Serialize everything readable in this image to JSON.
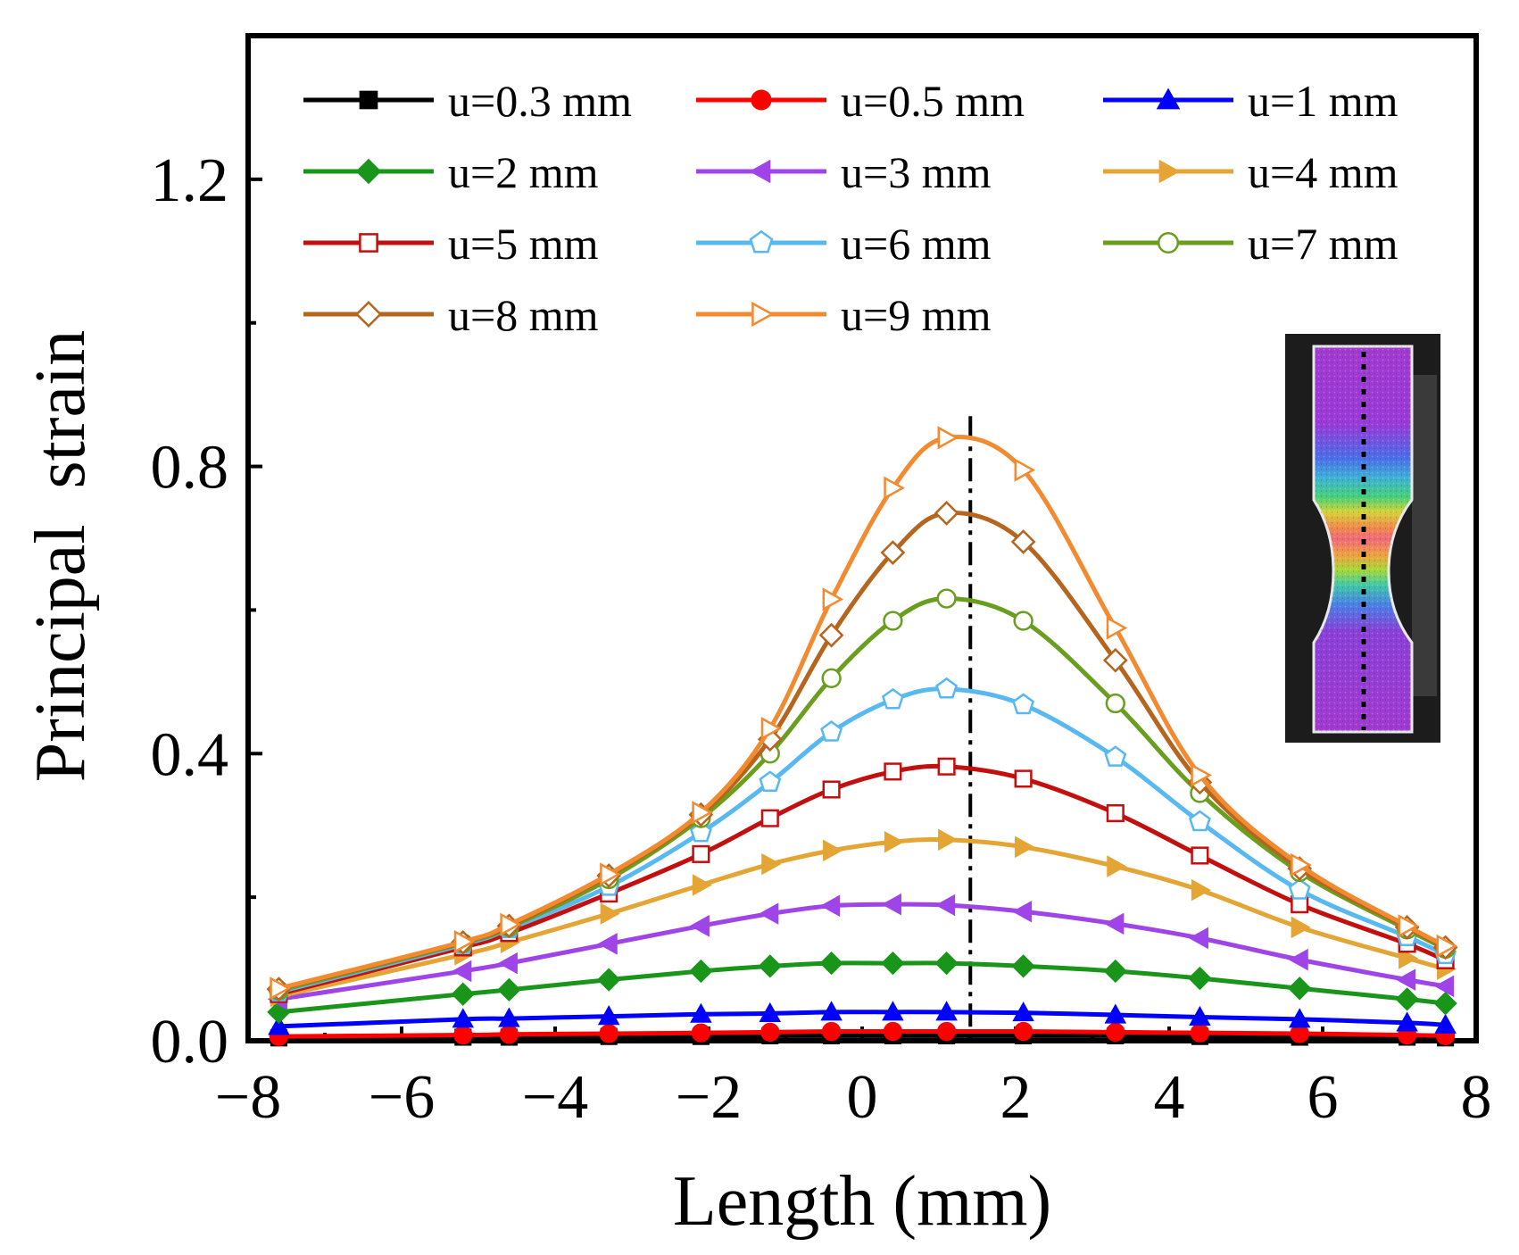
{
  "chart_data": {
    "type": "line",
    "xlabel": "Length (mm)",
    "ylabel": "Principal  strain",
    "xlim": [
      -8,
      8
    ],
    "ylim": [
      0,
      1.4
    ],
    "xticks": [
      -8,
      -6,
      -4,
      -2,
      0,
      2,
      4,
      6,
      8
    ],
    "xtick_labels": [
      "−8",
      "−6",
      "−4",
      "−2",
      "0",
      "2",
      "4",
      "6",
      "8"
    ],
    "yticks": [
      0,
      0.4,
      0.8,
      1.2
    ],
    "ytick_labels": [
      "0.0",
      "0.4",
      "0.8",
      "1.2"
    ],
    "reference_line_x": 1.41,
    "legend_position": "top",
    "x": [
      -7.6,
      -5.2,
      -4.6,
      -3.3,
      -2.1,
      -1.2,
      -0.4,
      0.4,
      1.1,
      2.1,
      3.3,
      4.4,
      5.7,
      7.1,
      7.6
    ],
    "series": [
      {
        "name": "u=0.3 mm",
        "color": "#000000",
        "marker": "square-filled",
        "values": [
          0.004,
          0.005,
          0.005,
          0.006,
          0.006,
          0.007,
          0.007,
          0.007,
          0.007,
          0.007,
          0.007,
          0.006,
          0.005,
          0.005,
          0.004
        ]
      },
      {
        "name": "u=0.5 mm",
        "color": "#ff0000",
        "marker": "circle-filled",
        "values": [
          0.006,
          0.008,
          0.009,
          0.01,
          0.011,
          0.012,
          0.013,
          0.013,
          0.013,
          0.013,
          0.012,
          0.011,
          0.01,
          0.008,
          0.007
        ]
      },
      {
        "name": "u=1 mm",
        "color": "#0000ff",
        "marker": "triangle-up-filled",
        "values": [
          0.02,
          0.03,
          0.031,
          0.034,
          0.037,
          0.038,
          0.04,
          0.04,
          0.04,
          0.039,
          0.036,
          0.033,
          0.03,
          0.025,
          0.022
        ]
      },
      {
        "name": "u=2 mm",
        "color": "#199519",
        "marker": "diamond-filled",
        "values": [
          0.04,
          0.065,
          0.071,
          0.085,
          0.097,
          0.104,
          0.108,
          0.108,
          0.108,
          0.104,
          0.097,
          0.087,
          0.073,
          0.058,
          0.052
        ]
      },
      {
        "name": "u=3 mm",
        "color": "#9f45e8",
        "marker": "triangle-left-filled",
        "values": [
          0.058,
          0.097,
          0.108,
          0.135,
          0.16,
          0.177,
          0.188,
          0.19,
          0.189,
          0.18,
          0.163,
          0.143,
          0.113,
          0.085,
          0.076
        ]
      },
      {
        "name": "u=4 mm",
        "color": "#e5a534",
        "marker": "triangle-right-filled",
        "values": [
          0.062,
          0.12,
          0.137,
          0.177,
          0.217,
          0.246,
          0.265,
          0.277,
          0.28,
          0.27,
          0.243,
          0.21,
          0.158,
          0.115,
          0.1
        ]
      },
      {
        "name": "u=5 mm",
        "color": "#c40f0f",
        "marker": "square-open",
        "values": [
          0.065,
          0.13,
          0.15,
          0.205,
          0.26,
          0.31,
          0.35,
          0.375,
          0.382,
          0.365,
          0.317,
          0.258,
          0.19,
          0.135,
          0.112
        ]
      },
      {
        "name": "u=6 mm",
        "color": "#58b8f2",
        "marker": "pentagon-open",
        "values": [
          0.068,
          0.134,
          0.156,
          0.215,
          0.29,
          0.36,
          0.43,
          0.475,
          0.49,
          0.468,
          0.395,
          0.305,
          0.21,
          0.145,
          0.12
        ]
      },
      {
        "name": "u=7 mm",
        "color": "#6a9e1f",
        "marker": "circle-open",
        "values": [
          0.07,
          0.136,
          0.158,
          0.225,
          0.31,
          0.4,
          0.505,
          0.585,
          0.616,
          0.585,
          0.47,
          0.345,
          0.235,
          0.155,
          0.128
        ]
      },
      {
        "name": "u=8 mm",
        "color": "#b5651d",
        "marker": "diamond-open",
        "values": [
          0.072,
          0.137,
          0.16,
          0.23,
          0.315,
          0.42,
          0.565,
          0.68,
          0.735,
          0.695,
          0.53,
          0.36,
          0.24,
          0.158,
          0.13
        ]
      },
      {
        "name": "u=9 mm",
        "color": "#f28a30",
        "marker": "triangle-right-open",
        "values": [
          0.073,
          0.138,
          0.162,
          0.232,
          0.318,
          0.435,
          0.615,
          0.77,
          0.84,
          0.795,
          0.575,
          0.37,
          0.245,
          0.16,
          0.132
        ]
      }
    ]
  }
}
